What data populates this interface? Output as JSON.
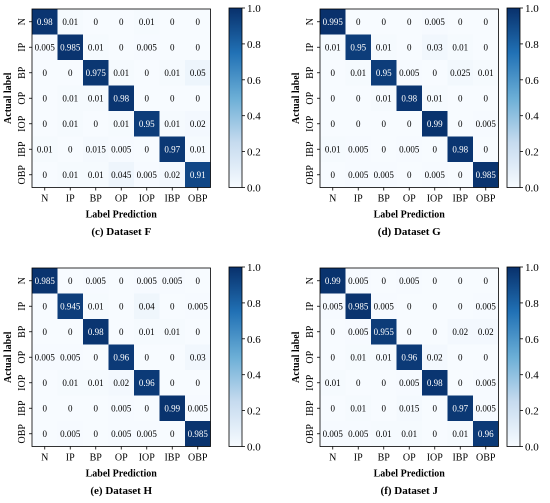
{
  "chart_data": [
    {
      "type": "heatmap",
      "caption": "(c) Dataset F",
      "xlabel": "Label Prediction",
      "ylabel": "Actual label",
      "x_categories": [
        "N",
        "IP",
        "BP",
        "OP",
        "IOP",
        "IBP",
        "OBP"
      ],
      "y_categories": [
        "N",
        "IP",
        "BP",
        "OP",
        "IOP",
        "IBP",
        "OBP"
      ],
      "matrix": [
        [
          "0.98",
          "0.01",
          "0",
          "0",
          "0.01",
          "0",
          "0"
        ],
        [
          "0.005",
          "0.985",
          "0.01",
          "0",
          "0.005",
          "0",
          "0"
        ],
        [
          "0",
          "0",
          "0.975",
          "0.01",
          "0",
          "0.01",
          "0.05"
        ],
        [
          "0",
          "0.01",
          "0.01",
          "0.98",
          "0",
          "0",
          "0"
        ],
        [
          "0",
          "0.01",
          "0",
          "0.01",
          "0.95",
          "0.01",
          "0.02"
        ],
        [
          "0.01",
          "0",
          "0.015",
          "0.005",
          "0",
          "0.97",
          "0.01"
        ],
        [
          "0",
          "0.01",
          "0.01",
          "0.045",
          "0.005",
          "0.02",
          "0.91"
        ]
      ],
      "colorbar_ticks": [
        "0.0",
        "0.2",
        "0.4",
        "0.6",
        "0.8",
        "1.0"
      ],
      "value_range": [
        0,
        1
      ]
    },
    {
      "type": "heatmap",
      "caption": "(d) Dataset G",
      "xlabel": "Label Prediction",
      "ylabel": "Actual label",
      "x_categories": [
        "N",
        "IP",
        "BP",
        "OP",
        "IOP",
        "IBP",
        "OBP"
      ],
      "y_categories": [
        "N",
        "IP",
        "BP",
        "OP",
        "IOP",
        "IBP",
        "OBP"
      ],
      "matrix": [
        [
          "0.995",
          "0",
          "0",
          "0",
          "0.005",
          "0",
          "0"
        ],
        [
          "0.01",
          "0.95",
          "0.01",
          "0",
          "0.03",
          "0.01",
          "0"
        ],
        [
          "0",
          "0.01",
          "0.95",
          "0.005",
          "0",
          "0.025",
          "0.01"
        ],
        [
          "0",
          "0",
          "0.01",
          "0.98",
          "0.01",
          "0",
          "0"
        ],
        [
          "0",
          "0",
          "0",
          "0",
          "0.99",
          "0",
          "0.005"
        ],
        [
          "0.01",
          "0.005",
          "0",
          "0.005",
          "0",
          "0.98",
          "0"
        ],
        [
          "0",
          "0.005",
          "0.005",
          "0",
          "0.005",
          "0",
          "0.985"
        ]
      ],
      "colorbar_ticks": [
        "0.0",
        "0.2",
        "0.4",
        "0.6",
        "0.8",
        "1.0"
      ],
      "value_range": [
        0,
        1
      ]
    },
    {
      "type": "heatmap",
      "caption": "(e) Dataset H",
      "xlabel": "Label Prediction",
      "ylabel": "Actual label",
      "x_categories": [
        "N",
        "IP",
        "BP",
        "OP",
        "IOP",
        "IBP",
        "OBP"
      ],
      "y_categories": [
        "N",
        "IP",
        "BP",
        "OP",
        "IOP",
        "IBP",
        "OBP"
      ],
      "matrix": [
        [
          "0.985",
          "0",
          "0.005",
          "0",
          "0.005",
          "0.005",
          "0"
        ],
        [
          "0",
          "0.945",
          "0.01",
          "0",
          "0.04",
          "0",
          "0.005"
        ],
        [
          "0",
          "0",
          "0.98",
          "0",
          "0.01",
          "0.01",
          "0"
        ],
        [
          "0.005",
          "0.005",
          "0",
          "0.96",
          "0",
          "0",
          "0.03"
        ],
        [
          "0",
          "0.01",
          "0.01",
          "0.02",
          "0.96",
          "0",
          "0"
        ],
        [
          "0",
          "0",
          "0",
          "0.005",
          "0",
          "0.99",
          "0.005"
        ],
        [
          "0",
          "0.005",
          "0",
          "0.005",
          "0.005",
          "0",
          "0.985"
        ]
      ],
      "colorbar_ticks": [
        "0.0",
        "0.2",
        "0.4",
        "0.6",
        "0.8",
        "1.0"
      ],
      "value_range": [
        0,
        1
      ]
    },
    {
      "type": "heatmap",
      "caption": "(f) Dataset J",
      "xlabel": "Label Prediction",
      "ylabel": "Actual label",
      "x_categories": [
        "N",
        "IP",
        "BP",
        "OP",
        "IOP",
        "IBP",
        "OBP"
      ],
      "y_categories": [
        "N",
        "IP",
        "BP",
        "OP",
        "IOP",
        "IBP",
        "OBP"
      ],
      "matrix": [
        [
          "0.99",
          "0.005",
          "0",
          "0.005",
          "0",
          "0",
          "0"
        ],
        [
          "0.005",
          "0.985",
          "0.005",
          "0",
          "0",
          "0",
          "0.005"
        ],
        [
          "0",
          "0.005",
          "0.955",
          "0",
          "0",
          "0.02",
          "0.02"
        ],
        [
          "0",
          "0.01",
          "0.01",
          "0.96",
          "0.02",
          "0",
          "0"
        ],
        [
          "0.01",
          "0",
          "0",
          "0.005",
          "0.98",
          "0",
          "0.005"
        ],
        [
          "0",
          "0.01",
          "0",
          "0.015",
          "0",
          "0.97",
          "0.005"
        ],
        [
          "0.005",
          "0.005",
          "0.01",
          "0.01",
          "0",
          "0.01",
          "0.96"
        ]
      ],
      "colorbar_ticks": [
        "0.0",
        "0.2",
        "0.4",
        "0.6",
        "0.8",
        "1.0"
      ],
      "value_range": [
        0,
        1
      ]
    }
  ]
}
